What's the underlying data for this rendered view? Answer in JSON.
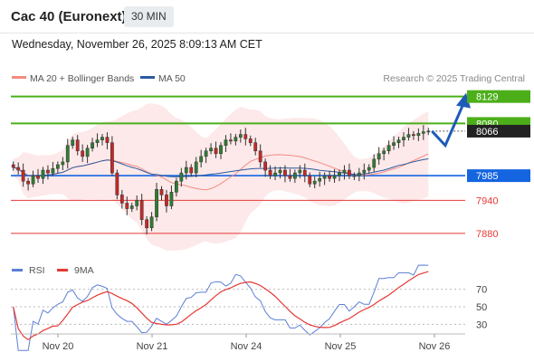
{
  "header": {
    "title": "Cac 40 (Euronext)",
    "timeframe": "30 MIN",
    "datetime": "Wednesday, November 26, 2025 8:09:13 AM CET"
  },
  "legend": {
    "items": [
      {
        "label": "MA 20 + Bollinger Bands",
        "color": "#f28b82"
      },
      {
        "label": "MA 50",
        "color": "#2c5aa0"
      }
    ],
    "copyright": "Research © 2025 Trading Central"
  },
  "chart_data": [
    {
      "type": "candlestick",
      "x_labels": [
        "Nov 20",
        "Nov 21",
        "Nov 24",
        "Nov 25",
        "Nov 26"
      ],
      "ylim": [
        7860,
        8140
      ],
      "levels": [
        {
          "label": "8129",
          "value": 8129,
          "kind": "resistance",
          "color": "#4caf1a"
        },
        {
          "label": "8080",
          "value": 8080,
          "kind": "resistance",
          "color": "#4caf1a"
        },
        {
          "label": "8066",
          "value": 8066,
          "kind": "last",
          "color": "#222222"
        },
        {
          "label": "7985",
          "value": 7985,
          "kind": "pivot",
          "color": "#1565e0"
        },
        {
          "label": "7940",
          "value": 7940,
          "kind": "support",
          "color": "#e53935"
        },
        {
          "label": "7880",
          "value": 7880,
          "kind": "support",
          "color": "#e53935"
        }
      ],
      "close_series": [
        8000,
        7995,
        7975,
        7970,
        7985,
        7980,
        7995,
        7990,
        7998,
        8005,
        8010,
        8040,
        8050,
        8030,
        8020,
        8035,
        8045,
        8050,
        8055,
        8045,
        7990,
        7950,
        7935,
        7925,
        7930,
        7940,
        7905,
        7890,
        7910,
        7960,
        7950,
        7930,
        7955,
        7975,
        7990,
        8000,
        7990,
        8010,
        8020,
        8030,
        8035,
        8025,
        8040,
        8050,
        8048,
        8055,
        8060,
        8052,
        8045,
        8030,
        8010,
        7995,
        7985,
        7990,
        7995,
        7985,
        7980,
        7990,
        7995,
        7985,
        7970,
        7975,
        7980,
        7985,
        7980,
        7985,
        7990,
        7995,
        7985,
        7985,
        7990,
        7995,
        8000,
        8015,
        8025,
        8030,
        8040,
        8045,
        8050,
        8055,
        8060,
        8058,
        8062,
        8065,
        8066
      ],
      "forecast_path": [
        8066,
        8040,
        8129
      ]
    },
    {
      "type": "line",
      "series": [
        {
          "name": "RSI",
          "color": "#5b7fd6"
        },
        {
          "name": "9MA",
          "color": "#e53935"
        }
      ],
      "ylim": [
        20,
        80
      ],
      "y_ticks": [
        {
          "label": "70",
          "value": 70
        },
        {
          "label": "50",
          "value": 50
        },
        {
          "label": "30",
          "value": 30
        }
      ]
    }
  ]
}
